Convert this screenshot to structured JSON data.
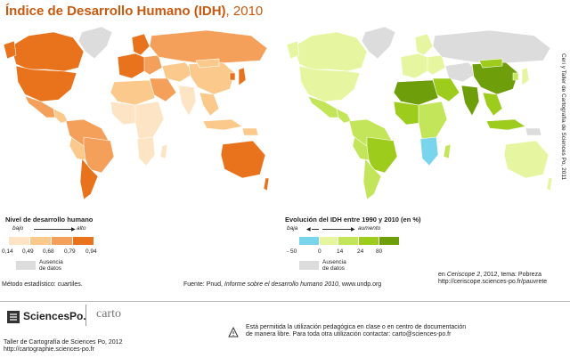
{
  "title": {
    "main": "Índice de Desarrollo Humano (IDH)",
    "year": ", 2010"
  },
  "legend_left": {
    "title": "Nivel de desarrollo humano",
    "low": "bajo",
    "high": "alto",
    "ticks": [
      "0,14",
      "0,49",
      "0,68",
      "0,79",
      "0,94"
    ],
    "colors": [
      "#fde4c4",
      "#fbc98c",
      "#f5a05a",
      "#e8731c"
    ],
    "no_data": "Ausencia",
    "no_data2": "de datos"
  },
  "legend_right": {
    "title": "Evolución del IDH entre 1990 y 2010 (en %)",
    "low": "baja",
    "high": "aumento",
    "ticks": [
      "- 50",
      "0",
      "14",
      "24",
      "80"
    ],
    "colors": [
      "#79d5ec",
      "#e6f5a0",
      "#c3e55a",
      "#9dcc1c",
      "#6e9e0a"
    ],
    "no_data": "Ausencia",
    "no_data2": "de datos"
  },
  "method": "Método estadístico: cuartiles.",
  "source_prefix": "Fuente: Pnud, ",
  "source_title": "Informe sobre el desarrollo humano 2010",
  "source_suffix": ", www.undp.org",
  "ref_line1_prefix": "en ",
  "ref_line1_title": "Ceriscope 2",
  "ref_line1_suffix": ", 2012, tema: Pobreza",
  "ref_line2": "http://ceriscope.sciences-po.fr/pauvrete",
  "side_credit": "Ceri y Taller de Cartografía de Sciences Po, 2011",
  "footer": {
    "logo": "SciencesPo.",
    "carto": "carto",
    "workshop": "Taller de Cartografía de Sciences Po, 2012",
    "url": "http://cartographie.sciences-po.fr",
    "notice1": "Está permitida la utilización pedagógica en clase o en centro de documentación",
    "notice2": "de manera libre. Para toda otra utilización contactar: carto@sciences-po.fr"
  }
}
